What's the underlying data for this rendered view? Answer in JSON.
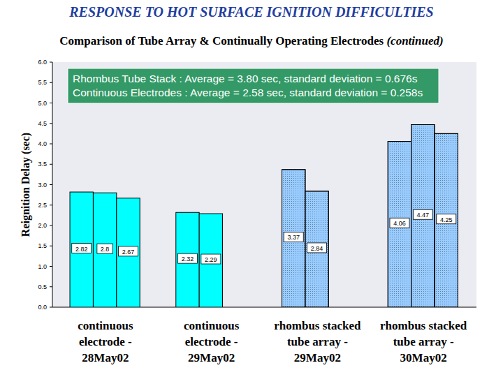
{
  "chart_data": {
    "type": "bar",
    "title": "RESPONSE TO HOT SURFACE IGNITION DIFFICULTIES",
    "subtitle": "Comparison of Tube Array & Continually Operating Electrodes (continued)",
    "y_label": "Reignition Delay (sec)",
    "annotations": [
      "Rhombus Tube Stack : Average = 3.80 sec, standard deviation = 0.676s",
      "Continuous Electrodes : Average = 2.58 sec, standard deviation = 0.258s"
    ],
    "categories": [
      "continuous\nelectrode -\n28May02",
      "continuous\nelectrode -\n29May02",
      "rhombus stacked\ntube array -\n29May02",
      "rhombus stacked\ntube array -\n30May02"
    ],
    "series": [
      {
        "values": [
          2.82,
          2.32,
          3.37,
          4.06
        ],
        "colors": [
          "#00ffff",
          "#00ffff",
          "#99ccff",
          "#99ccff"
        ]
      },
      {
        "values": [
          2.8,
          2.29,
          2.84,
          4.47
        ],
        "colors": [
          "#00ffff",
          "#00ffff",
          "#99ccff",
          "#99ccff"
        ]
      },
      {
        "values": [
          2.67,
          null,
          null,
          4.25
        ],
        "colors": [
          "#00ffff",
          "#00ffff",
          "#99ccff",
          "#99ccff"
        ]
      }
    ],
    "ylim": [
      0,
      6
    ],
    "yticks": [
      {
        "value": 0,
        "label": "0.0"
      },
      0.5,
      {
        "value": 1,
        "label": "1.0"
      },
      1.5,
      {
        "value": 2,
        "label": "2.0"
      },
      2.5,
      {
        "value": 3,
        "label": "3.0"
      },
      3.5,
      {
        "value": 4,
        "label": "4.0"
      },
      4.5,
      {
        "value": 5,
        "label": "5.0"
      },
      5.5,
      {
        "value": 6,
        "label": "6.0"
      }
    ],
    "grid": false,
    "data_labels": true
  }
}
